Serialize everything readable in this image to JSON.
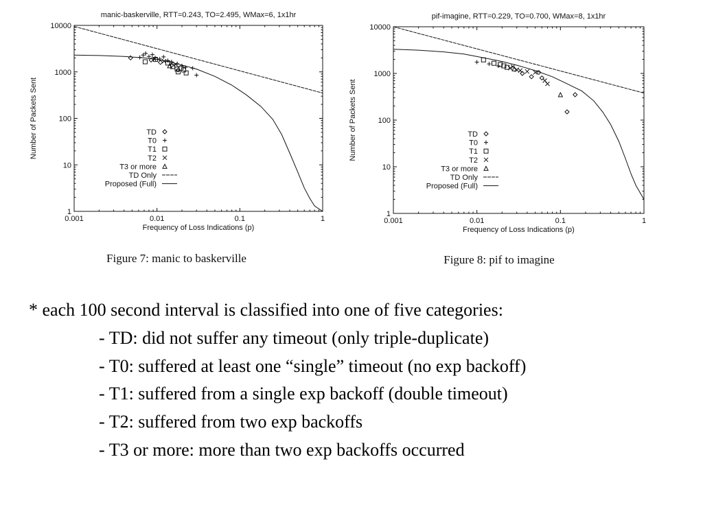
{
  "chart_data": [
    {
      "type": "scatter",
      "title": "manic-baskerville, RTT=0.243, TO=2.495, WMax=6, 1x1hr",
      "xlabel": "Frequency of Loss Indications (p)",
      "ylabel": "Number of Packets Sent",
      "xscale": "log",
      "yscale": "log",
      "xlim": [
        0.001,
        1
      ],
      "ylim": [
        1,
        10000
      ],
      "x_ticks": [
        "0.001",
        "0.01",
        "0.1",
        "1"
      ],
      "y_ticks": [
        "1",
        "10",
        "100",
        "1000",
        "10000"
      ],
      "grid": false,
      "legend_position": "lower-left",
      "caption": "Figure 7: manic to baskerville",
      "series": [
        {
          "name": "TD",
          "marker": "diamond",
          "points": [
            [
              0.0048,
              2000
            ],
            [
              0.0085,
              1800
            ],
            [
              0.011,
              1600
            ],
            [
              0.015,
              1400
            ],
            [
              0.018,
              1100
            ]
          ]
        },
        {
          "name": "T0",
          "marker": "plus",
          "points": [
            [
              0.0062,
              2050
            ],
            [
              0.0068,
              2300
            ],
            [
              0.0073,
              2500
            ],
            [
              0.008,
              2150
            ],
            [
              0.0088,
              2350
            ],
            [
              0.0095,
              2000
            ],
            [
              0.0108,
              1900
            ],
            [
              0.012,
              2100
            ],
            [
              0.0135,
              1750
            ],
            [
              0.015,
              1650
            ],
            [
              0.0175,
              1500
            ],
            [
              0.02,
              1350
            ],
            [
              0.022,
              1250
            ],
            [
              0.027,
              1200
            ],
            [
              0.03,
              850
            ]
          ]
        },
        {
          "name": "T1",
          "marker": "square",
          "points": [
            [
              0.0072,
              1650
            ],
            [
              0.0096,
              1850
            ],
            [
              0.0135,
              1550
            ],
            [
              0.0155,
              1300
            ],
            [
              0.0175,
              1150
            ],
            [
              0.018,
              1000
            ],
            [
              0.0195,
              1200
            ],
            [
              0.021,
              1100
            ],
            [
              0.0225,
              950
            ]
          ]
        },
        {
          "name": "T2",
          "marker": "x",
          "points": [
            [
              0.0092,
              1900
            ],
            [
              0.0122,
              1700
            ],
            [
              0.0168,
              1450
            ]
          ]
        },
        {
          "name": "T3 or more",
          "marker": "triangle",
          "points": [
            [
              0.0142,
              1350
            ]
          ]
        },
        {
          "name": "TD Only",
          "type": "line",
          "style": "dashed",
          "x": [
            0.001,
            1
          ],
          "y": [
            9500,
            350
          ]
        },
        {
          "name": "Proposed (Full)",
          "type": "line",
          "style": "solid",
          "x": [
            0.001,
            0.002,
            0.004,
            0.007,
            0.01,
            0.015,
            0.02,
            0.03,
            0.05,
            0.08,
            0.12,
            0.18,
            0.25,
            0.32,
            0.4,
            0.5,
            0.6,
            0.7,
            0.8,
            1
          ],
          "y": [
            2300,
            2250,
            2150,
            2000,
            1850,
            1600,
            1400,
            1150,
            800,
            520,
            320,
            180,
            95,
            45,
            18,
            7,
            3.2,
            1.9,
            1.3,
            1
          ]
        }
      ]
    },
    {
      "type": "scatter",
      "title": "pif-imagine, RTT=0.229, TO=0.700, WMax=8, 1x1hr",
      "xlabel": "Frequency of Loss Indications (p)",
      "ylabel": "Number of Packets Sent",
      "xscale": "log",
      "yscale": "log",
      "xlim": [
        0.001,
        1
      ],
      "ylim": [
        1,
        10000
      ],
      "x_ticks": [
        "0.001",
        "0.01",
        "0.1",
        "1"
      ],
      "y_ticks": [
        "1",
        "10",
        "100",
        "1000",
        "10000"
      ],
      "grid": false,
      "legend_position": "lower-left",
      "caption": "Figure 8: pif to imagine",
      "series": [
        {
          "name": "TD",
          "marker": "diamond",
          "points": [
            [
              0.035,
              1000
            ],
            [
              0.045,
              850
            ],
            [
              0.06,
              800
            ],
            [
              0.12,
              150
            ],
            [
              0.15,
              350
            ],
            [
              0.055,
              1050
            ]
          ]
        },
        {
          "name": "T0",
          "marker": "plus",
          "points": [
            [
              0.01,
              1750
            ],
            [
              0.014,
              1600
            ],
            [
              0.018,
              1450
            ]
          ]
        },
        {
          "name": "T1",
          "marker": "square",
          "points": [
            [
              0.012,
              1950
            ],
            [
              0.016,
              1650
            ],
            [
              0.019,
              1550
            ],
            [
              0.021,
              1450
            ],
            [
              0.023,
              1350
            ]
          ]
        },
        {
          "name": "T2",
          "marker": "x",
          "points": [
            [
              0.025,
              1300
            ],
            [
              0.027,
              1400
            ],
            [
              0.03,
              1200
            ],
            [
              0.033,
              1150
            ],
            [
              0.04,
              1100
            ],
            [
              0.05,
              1050
            ],
            [
              0.065,
              700
            ],
            [
              0.07,
              600
            ]
          ]
        },
        {
          "name": "T3 or more",
          "marker": "triangle",
          "points": [
            [
              0.1,
              350
            ],
            [
              0.028,
              1250
            ]
          ]
        },
        {
          "name": "TD Only",
          "type": "line",
          "style": "dashed",
          "x": [
            0.001,
            1
          ],
          "y": [
            10000,
            380
          ]
        },
        {
          "name": "Proposed (Full)",
          "type": "line",
          "style": "solid",
          "x": [
            0.001,
            0.002,
            0.004,
            0.007,
            0.01,
            0.015,
            0.02,
            0.03,
            0.05,
            0.08,
            0.12,
            0.18,
            0.25,
            0.32,
            0.4,
            0.5,
            0.6,
            0.7,
            0.8,
            1
          ],
          "y": [
            3300,
            3150,
            2900,
            2600,
            2300,
            2000,
            1800,
            1500,
            1150,
            850,
            600,
            420,
            260,
            150,
            80,
            35,
            15,
            7,
            4,
            2
          ]
        }
      ]
    }
  ],
  "notes": {
    "intro": "* each 100 second interval is classified into one of five categories:",
    "items": [
      "- TD: did not suffer any timeout (only triple-duplicate)",
      "- T0: suffered at least one “single” timeout (no exp backoff)",
      "- T1: suffered from a single exp backoff (double timeout)",
      "- T2: suffered from two exp backoffs",
      "- T3 or more: more than two exp backoffs occurred"
    ]
  }
}
